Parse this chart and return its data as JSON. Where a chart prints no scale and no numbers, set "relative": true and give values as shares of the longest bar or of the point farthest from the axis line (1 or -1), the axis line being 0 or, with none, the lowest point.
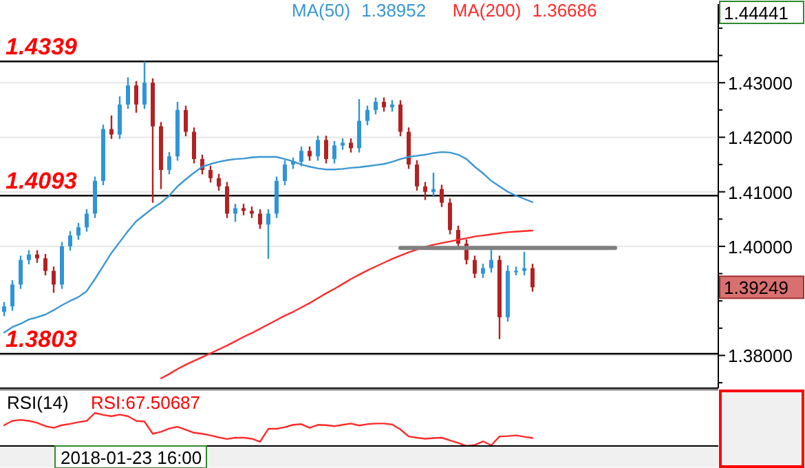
{
  "chart_data": [
    {
      "type": "candlestick",
      "grid": "y",
      "tick_labels": "y",
      "colors": [
        "#2f95d6",
        "#2f95d6",
        "#2f95d6",
        "#2f95d6",
        "#b22222",
        "#b22222",
        "#b22222",
        "#2f95d6",
        "#2f95d6",
        "#2f95d6",
        "#2f95d6",
        "#2f95d6",
        "#2f95d6",
        "#b22222",
        "#2f95d6",
        "#2f95d6",
        "#b22222",
        "#2f95d6",
        "#b22222",
        "#b22222",
        "#2f95d6",
        "#2f95d6",
        "#b22222",
        "#b22222",
        "#b22222",
        "#b22222",
        "#b22222",
        "#b22222",
        "#2f95d6",
        "#b22222",
        "#b22222",
        "#b22222",
        "#2f95d6",
        "#2f95d6",
        "#2f95d6",
        "#2f95d6",
        "#2f95d6",
        "#b22222",
        "#2f95d6",
        "#b22222",
        "#2f95d6",
        "#2f95d6",
        "#b22222",
        "#2f95d6",
        "#2f95d6",
        "#2f95d6",
        "#b22222",
        "#2f95d6",
        "#b22222",
        "#b22222",
        "#b22222",
        "#b22222",
        "#2f95d6",
        "#b22222",
        "#b22222",
        "#b22222",
        "#b22222",
        "#b22222",
        "#2f95d6",
        "#2f95d6",
        "#b22222",
        "#2f95d6",
        "#2f95d6",
        "#2f95d6",
        "#b22222",
        null,
        null,
        null,
        null,
        null,
        null,
        null,
        null,
        null,
        null,
        null,
        null,
        null,
        null,
        null,
        null,
        null,
        null,
        null,
        null,
        null
      ],
      "categories": [
        null,
        null,
        null,
        null,
        null,
        null,
        null,
        null,
        null,
        null,
        null,
        null,
        null,
        null,
        null,
        null,
        null,
        null,
        null,
        null,
        null,
        null,
        null,
        null,
        null,
        null,
        null,
        null,
        null,
        null,
        null,
        null,
        null,
        null,
        null,
        null,
        null,
        null,
        null,
        null,
        null,
        null,
        null,
        null,
        null,
        null,
        null,
        null,
        null,
        null,
        null,
        null,
        null,
        null,
        null,
        null,
        null,
        null,
        null,
        null,
        null,
        null,
        null,
        null,
        null,
        null,
        null,
        null,
        null,
        null,
        null,
        null,
        null,
        null,
        null,
        null,
        null,
        null,
        null,
        null,
        null,
        null,
        null,
        null,
        null,
        null
      ],
      "ylim": [
        1.374,
        1.44441
      ],
      "yticks": [
        {
          "value": 1.375,
          "label": null
        },
        {
          "value": 1.38,
          "label": "1.38000"
        },
        {
          "value": 1.385,
          "label": null
        },
        {
          "value": 1.39,
          "label": null
        },
        {
          "value": 1.395,
          "label": null
        },
        {
          "value": 1.4,
          "label": "1.40000"
        },
        {
          "value": 1.405,
          "label": null
        },
        {
          "value": 1.41,
          "label": "1.41000"
        },
        {
          "value": 1.415,
          "label": null
        },
        {
          "value": 1.42,
          "label": "1.42000"
        },
        {
          "value": 1.425,
          "label": null
        },
        {
          "value": 1.43,
          "label": "1.43000"
        },
        {
          "value": 1.435,
          "label": null
        },
        {
          "value": 1.44,
          "label": null
        }
      ],
      "ohlc": [
        [
          1.388,
          1.3898,
          1.3872,
          1.389
        ],
        [
          1.389,
          1.3938,
          1.3882,
          1.393
        ],
        [
          1.393,
          1.3983,
          1.3922,
          1.3975
        ],
        [
          1.3975,
          1.3993,
          1.3967,
          1.3985
        ],
        [
          1.3985,
          1.3993,
          1.397,
          1.3978
        ],
        [
          1.3978,
          1.3986,
          1.3947,
          1.3955
        ],
        [
          1.3955,
          1.3963,
          1.3915,
          1.393
        ],
        [
          1.393,
          1.4008,
          1.3922,
          1.4
        ],
        [
          1.4,
          1.4028,
          1.3992,
          1.402
        ],
        [
          1.402,
          1.4043,
          1.4012,
          1.4035
        ],
        [
          1.4035,
          1.4068,
          1.4027,
          1.406
        ],
        [
          1.406,
          1.4128,
          1.4052,
          1.412
        ],
        [
          1.412,
          1.4223,
          1.4112,
          1.4215
        ],
        [
          1.4215,
          1.424,
          1.4197,
          1.4205
        ],
        [
          1.4205,
          1.4275,
          1.4197,
          1.426
        ],
        [
          1.426,
          1.431,
          1.4252,
          1.4295
        ],
        [
          1.4295,
          1.4303,
          1.4245,
          1.426
        ],
        [
          1.426,
          1.4339,
          1.4252,
          1.43
        ],
        [
          1.43,
          1.4308,
          1.408,
          1.422
        ],
        [
          1.422,
          1.4228,
          1.4105,
          1.414
        ],
        [
          1.414,
          1.4173,
          1.4132,
          1.4165
        ],
        [
          1.4165,
          1.4265,
          1.4157,
          1.425
        ],
        [
          1.425,
          1.4258,
          1.4202,
          1.421
        ],
        [
          1.421,
          1.4218,
          1.4152,
          1.416
        ],
        [
          1.416,
          1.4168,
          1.4132,
          1.414
        ],
        [
          1.414,
          1.4148,
          1.4117,
          1.4125
        ],
        [
          1.4125,
          1.4133,
          1.4102,
          1.411
        ],
        [
          1.411,
          1.4118,
          1.4052,
          1.406
        ],
        [
          1.406,
          1.4078,
          1.4045,
          1.407
        ],
        [
          1.407,
          1.4078,
          1.4057,
          1.4065
        ],
        [
          1.4065,
          1.4073,
          1.4052,
          1.406
        ],
        [
          1.406,
          1.4068,
          1.4032,
          1.404
        ],
        [
          1.404,
          1.4068,
          1.3977,
          1.406
        ],
        [
          1.406,
          1.4128,
          1.4052,
          1.412
        ],
        [
          1.412,
          1.4158,
          1.4112,
          1.415
        ],
        [
          1.415,
          1.4163,
          1.4142,
          1.4155
        ],
        [
          1.4155,
          1.4183,
          1.4147,
          1.4175
        ],
        [
          1.4175,
          1.4183,
          1.4157,
          1.4165
        ],
        [
          1.4165,
          1.4203,
          1.4157,
          1.4195
        ],
        [
          1.4195,
          1.4203,
          1.4152,
          1.416
        ],
        [
          1.416,
          1.4193,
          1.4152,
          1.4185
        ],
        [
          1.4185,
          1.4198,
          1.4177,
          1.419
        ],
        [
          1.419,
          1.4198,
          1.4172,
          1.418
        ],
        [
          1.418,
          1.427,
          1.4172,
          1.423
        ],
        [
          1.423,
          1.4258,
          1.4222,
          1.425
        ],
        [
          1.425,
          1.4273,
          1.4242,
          1.4265
        ],
        [
          1.4265,
          1.4273,
          1.4247,
          1.4255
        ],
        [
          1.4255,
          1.4268,
          1.4247,
          1.426
        ],
        [
          1.426,
          1.4268,
          1.4202,
          1.421
        ],
        [
          1.421,
          1.4218,
          1.4142,
          1.415
        ],
        [
          1.415,
          1.4158,
          1.4102,
          1.411
        ],
        [
          1.411,
          1.4118,
          1.4085,
          1.41
        ],
        [
          1.41,
          1.4135,
          1.4092,
          1.4105
        ],
        [
          1.4105,
          1.4113,
          1.4072,
          1.408
        ],
        [
          1.408,
          1.4088,
          1.4022,
          1.403
        ],
        [
          1.403,
          1.4038,
          1.3997,
          1.4005
        ],
        [
          1.4005,
          1.4013,
          1.3967,
          1.3975
        ],
        [
          1.3975,
          1.3983,
          1.3942,
          1.395
        ],
        [
          1.395,
          1.3968,
          1.3942,
          1.396
        ],
        [
          1.396,
          1.3998,
          1.3952,
          1.3975
        ],
        [
          1.3975,
          1.3983,
          1.383,
          1.387
        ],
        [
          1.387,
          1.3965,
          1.3862,
          1.3955
        ],
        [
          1.3955,
          1.3963,
          1.3947,
          1.3955
        ],
        [
          1.3955,
          1.399,
          1.3947,
          1.396
        ],
        [
          1.396,
          1.3968,
          1.3917,
          1.3925
        ],
        null,
        null,
        null,
        null,
        null,
        null,
        null,
        null,
        null,
        null,
        null,
        null,
        null,
        null,
        null,
        null,
        null,
        null,
        null,
        null,
        null
      ],
      "series": [
        {
          "type": "line",
          "name": "MA(50)",
          "color": "#3a97d4",
          "values": [
            1.3842,
            1.3852,
            1.3858,
            1.3866,
            1.387,
            1.3875,
            1.3883,
            1.3892,
            1.39,
            1.3907,
            1.3918,
            1.394,
            1.3964,
            1.3988,
            1.4008,
            1.4028,
            1.4046,
            1.4058,
            1.407,
            1.408,
            1.4093,
            1.411,
            1.4123,
            1.4135,
            1.4146,
            1.4151,
            1.4155,
            1.4158,
            1.416,
            1.4161,
            1.4163,
            1.4164,
            1.4164,
            1.4164,
            1.416,
            1.4156,
            1.415,
            1.4146,
            1.4143,
            1.4141,
            1.4141,
            1.4142,
            1.4144,
            1.4145,
            1.4147,
            1.4149,
            1.4151,
            1.4155,
            1.416,
            1.4164,
            1.4166,
            1.4168,
            1.4171,
            1.4173,
            1.4172,
            1.4168,
            1.416,
            1.4146,
            1.4134,
            1.412,
            1.411,
            1.41,
            1.4093,
            1.4087,
            1.4081,
            null,
            null,
            null,
            null,
            null,
            null,
            null,
            null,
            null,
            null,
            null,
            null,
            null,
            null,
            null,
            null,
            null,
            null,
            null,
            null,
            null
          ]
        },
        {
          "type": "line",
          "name": "MA(200)",
          "color": "#ff2a2a",
          "values": [
            null,
            null,
            null,
            null,
            null,
            null,
            null,
            null,
            null,
            null,
            null,
            null,
            null,
            null,
            null,
            null,
            null,
            null,
            null,
            1.3758,
            1.3766,
            1.3775,
            1.3783,
            1.379,
            1.3797,
            1.3804,
            1.3811,
            1.3818,
            1.3826,
            1.3834,
            1.3841,
            1.3849,
            1.3857,
            1.3865,
            1.3873,
            1.388,
            1.3888,
            1.3896,
            1.3905,
            1.3914,
            1.3922,
            1.3931,
            1.394,
            1.3948,
            1.3956,
            1.3963,
            1.397,
            1.3977,
            1.3983,
            1.3989,
            1.3994,
            1.3999,
            1.4003,
            1.4006,
            1.4009,
            1.4012,
            1.4015,
            1.4018,
            1.402,
            1.4022,
            1.4024,
            1.4026,
            1.4027,
            1.4028,
            1.4029,
            null,
            null,
            null,
            null,
            null,
            null,
            null,
            null,
            null,
            null,
            null,
            null,
            null,
            null,
            null,
            null,
            null,
            null,
            null,
            null,
            null
          ]
        },
        {
          "type": "line",
          "color": "#808080",
          "values": [
            null,
            null,
            null,
            null,
            null,
            null,
            null,
            null,
            null,
            null,
            null,
            null,
            null,
            null,
            null,
            null,
            null,
            null,
            null,
            null,
            null,
            null,
            null,
            null,
            null,
            null,
            null,
            null,
            null,
            null,
            null,
            null,
            null,
            null,
            null,
            null,
            null,
            null,
            null,
            null,
            null,
            null,
            null,
            null,
            null,
            null,
            null,
            null,
            1.3997,
            1.3997,
            1.3997,
            1.3997,
            1.3997,
            1.3997,
            1.3997,
            1.3997,
            1.3997,
            1.3997,
            1.3997,
            1.3997,
            1.3997,
            1.3997,
            1.3997,
            1.3997,
            1.3997,
            1.3997,
            1.3997,
            1.3997,
            1.3997,
            1.3997,
            1.3997,
            1.3997,
            1.3997,
            1.3997,
            1.3997,
            null,
            null,
            null,
            null,
            null,
            null,
            null,
            null,
            null,
            null,
            null
          ]
        }
      ],
      "ref_lines": [
        {
          "axis": "y",
          "value": 1.4339,
          "label": "1.4339",
          "color": "#000000"
        },
        {
          "axis": "y",
          "value": 1.4093,
          "label": "1.4093",
          "color": "#000000"
        },
        {
          "axis": "y",
          "value": 1.3803,
          "label": "1.3803",
          "color": "#000000"
        }
      ],
      "annotations": [
        "1.38952",
        "1.36686",
        "1.44441",
        "1.39249"
      ]
    },
    {
      "type": "line",
      "title": "RSI(14)",
      "relative": true,
      "tick_labels": false,
      "annotations": [
        "RSI:67.50687",
        "2018-01-23 16:00"
      ],
      "categories": [
        null,
        null,
        null,
        null,
        null,
        null,
        null,
        null,
        null,
        null,
        null,
        null,
        null,
        null,
        null,
        null,
        null,
        null,
        null,
        null,
        null,
        null,
        null,
        null,
        null,
        null,
        null,
        null,
        null,
        null,
        null,
        null,
        null,
        null,
        null,
        null,
        null,
        null,
        null,
        null,
        null,
        null,
        null,
        null,
        null,
        null,
        null,
        null,
        null,
        null,
        null,
        null,
        null,
        null,
        null,
        null,
        null,
        null,
        null,
        null,
        null,
        null,
        null,
        null,
        null,
        null,
        null,
        null,
        null,
        null,
        null,
        null,
        null,
        null,
        null,
        null,
        null,
        null,
        null,
        null,
        null,
        null,
        null,
        null,
        null,
        null
      ],
      "series": [
        {
          "color": "#ff2a2a",
          "values": [
            0.63,
            0.76,
            0.79,
            0.76,
            0.7,
            0.6,
            0.55,
            0.63,
            0.67,
            0.72,
            0.76,
            1,
            0.94,
            0.9,
            0.95,
            0.9,
            0.76,
            0.74,
            0.37,
            0.43,
            0.53,
            0.58,
            0.49,
            0.4,
            0.37,
            0.32,
            0.26,
            0.21,
            0.25,
            0.25,
            0.22,
            0.13,
            0.52,
            0.52,
            0.57,
            0.64,
            0.66,
            0.55,
            0.64,
            0.63,
            0.6,
            0.64,
            0.68,
            0.62,
            0.66,
            0.68,
            0.68,
            0.65,
            0.5,
            0.29,
            0.25,
            0.22,
            0.24,
            0.25,
            0.17,
            0.09,
            0,
            0.03,
            0.14,
            0.02,
            0.29,
            0.3,
            0.32,
            0.28,
            0.24,
            null,
            null,
            null,
            null,
            null,
            null,
            null,
            null,
            null,
            null,
            null,
            null,
            null,
            null,
            null,
            null,
            null,
            null,
            null,
            null,
            null
          ]
        }
      ]
    }
  ]
}
